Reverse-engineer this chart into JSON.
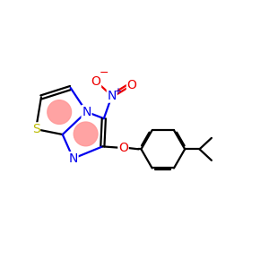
{
  "bg_color": "#ffffff",
  "atom_colors": {
    "C": "#000000",
    "N": "#0000ee",
    "O": "#ee0000",
    "S": "#bbbb00",
    "ring_highlight": "#ff9999"
  },
  "bond_color": "#000000",
  "bond_width": 1.6,
  "figsize": [
    3.0,
    3.0
  ],
  "dpi": 100
}
